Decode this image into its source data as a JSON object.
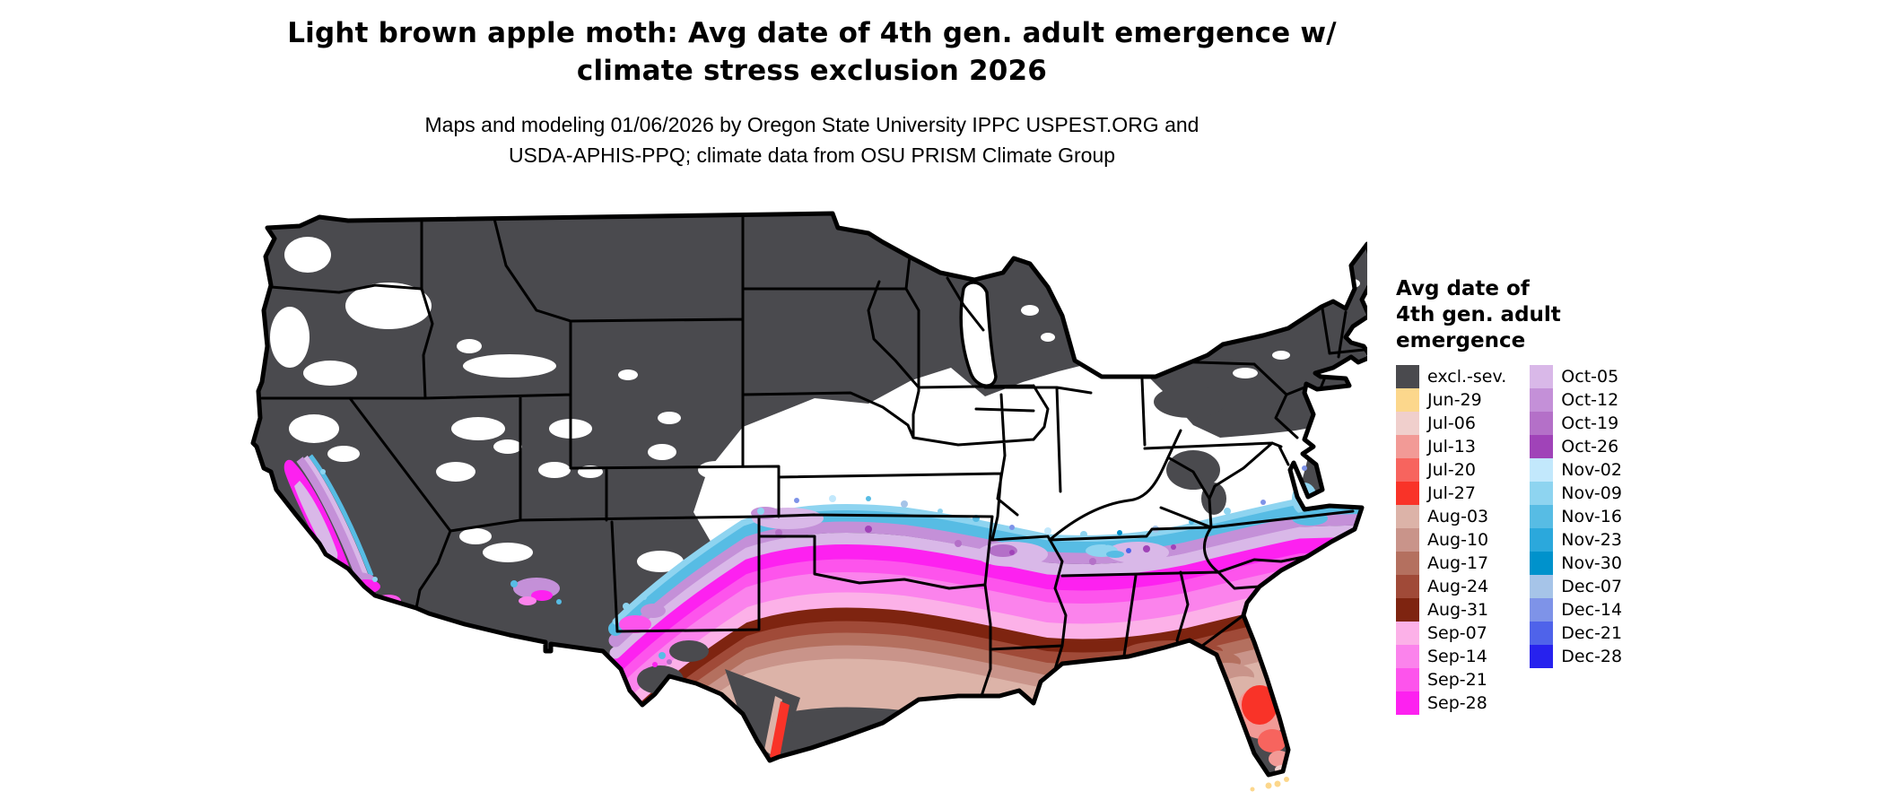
{
  "title": {
    "line1": "Light brown apple moth: Avg date of 4th gen. adult emergence w/",
    "line2": "climate stress exclusion 2026"
  },
  "subtitle": {
    "line1": "Maps and modeling 01/06/2026 by Oregon State University IPPC USPEST.ORG and",
    "line2": "USDA-APHIS-PPQ; climate data from OSU PRISM Climate Group"
  },
  "legend": {
    "title_line1": "Avg date of",
    "title_line2": "4th gen. adult",
    "title_line3": "emergence",
    "column1": [
      {
        "key": "excl",
        "label": "excl.-sev.",
        "color": "#4a4a4e"
      },
      {
        "key": "jun29",
        "label": "Jun-29",
        "color": "#fcd78c"
      },
      {
        "key": "jul06",
        "label": "Jul-06",
        "color": "#f0cfcc"
      },
      {
        "key": "jul13",
        "label": "Jul-13",
        "color": "#f29a96"
      },
      {
        "key": "jul20",
        "label": "Jul-20",
        "color": "#f7645e"
      },
      {
        "key": "jul27",
        "label": "Jul-27",
        "color": "#f93328"
      },
      {
        "key": "aug03",
        "label": "Aug-03",
        "color": "#dcb3a8"
      },
      {
        "key": "aug10",
        "label": "Aug-10",
        "color": "#c9948a"
      },
      {
        "key": "aug17",
        "label": "Aug-17",
        "color": "#b4705f"
      },
      {
        "key": "aug24",
        "label": "Aug-24",
        "color": "#a04a38"
      },
      {
        "key": "aug31",
        "label": "Aug-31",
        "color": "#7e2410"
      },
      {
        "key": "sep07",
        "label": "Sep-07",
        "color": "#fcb1e8"
      },
      {
        "key": "sep14",
        "label": "Sep-14",
        "color": "#fb83ec"
      },
      {
        "key": "sep21",
        "label": "Sep-21",
        "color": "#fd54ec"
      },
      {
        "key": "sep28",
        "label": "Sep-28",
        "color": "#fd21f0"
      }
    ],
    "column2": [
      {
        "key": "oct05",
        "label": "Oct-05",
        "color": "#d9b8e8"
      },
      {
        "key": "oct12",
        "label": "Oct-12",
        "color": "#c490d8"
      },
      {
        "key": "oct19",
        "label": "Oct-19",
        "color": "#b470c8"
      },
      {
        "key": "oct26",
        "label": "Oct-26",
        "color": "#a043b8"
      },
      {
        "key": "nov02",
        "label": "Nov-02",
        "color": "#c2e8fc"
      },
      {
        "key": "nov09",
        "label": "Nov-09",
        "color": "#8ed4f0"
      },
      {
        "key": "nov16",
        "label": "Nov-16",
        "color": "#57bce4"
      },
      {
        "key": "nov23",
        "label": "Nov-23",
        "color": "#2ba8dc"
      },
      {
        "key": "nov30",
        "label": "Nov-30",
        "color": "#0092cc"
      },
      {
        "key": "dec07",
        "label": "Dec-07",
        "color": "#a6c4e8"
      },
      {
        "key": "dec14",
        "label": "Dec-14",
        "color": "#7e93e8"
      },
      {
        "key": "dec21",
        "label": "Dec-21",
        "color": "#4f63ea"
      },
      {
        "key": "dec28",
        "label": "Dec-28",
        "color": "#2722ee"
      }
    ]
  },
  "colors": {
    "excluded_gray": "#4a4a4e",
    "map_border": "#000000",
    "background": "#ffffff",
    "text": "#000000"
  }
}
